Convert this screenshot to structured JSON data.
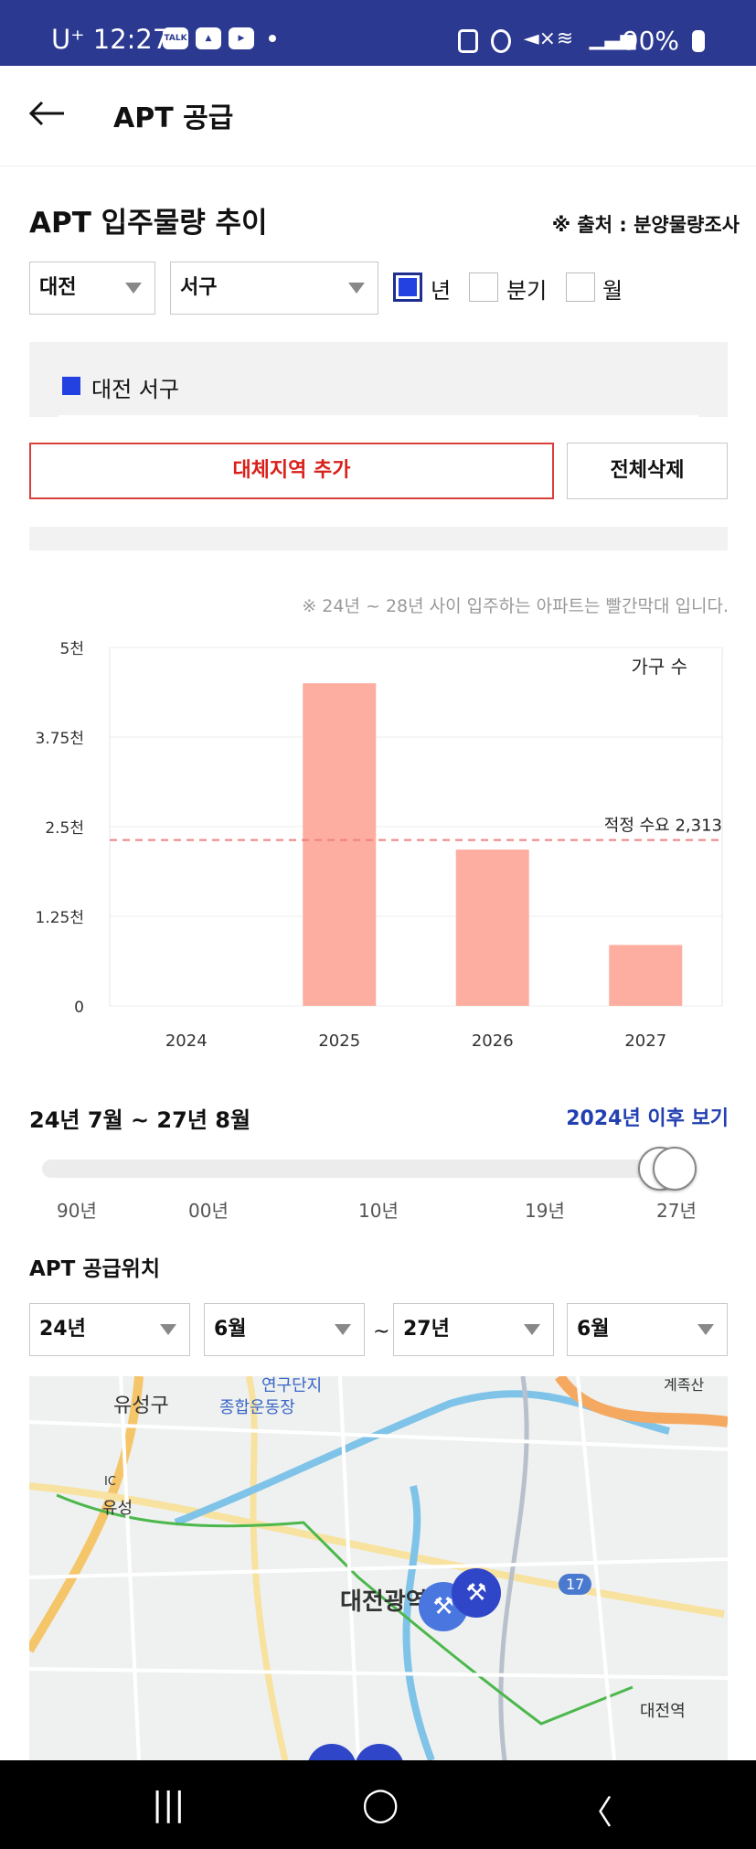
{
  "status": {
    "time": "U⁺ 12:27",
    "battery": "90%",
    "icons": [
      "talk-icon",
      "image-icon",
      "youtube-icon",
      "sim-icon",
      "alarm-icon",
      "mute-icon",
      "wifi-icon",
      "signal-icon",
      "battery-icon"
    ]
  },
  "header": {
    "title": "APT 공급"
  },
  "supply_section": {
    "title": "APT 입주물량 추이",
    "source": "※ 출처 : 분양물량조사",
    "region_select": "대전",
    "district_select": "서구",
    "period_options": [
      {
        "label": "년",
        "checked": true
      },
      {
        "label": "분기",
        "checked": false
      },
      {
        "label": "월",
        "checked": false
      }
    ],
    "legend_label": "대전 서구",
    "add_button": "대체지역 추가",
    "delete_button": "전체삭제",
    "note": "※ 24년 ~ 28년 사이 입주하는 아파트는 빨간막대 입니다."
  },
  "chart_data": {
    "type": "bar",
    "categories": [
      "2024",
      "2025",
      "2026",
      "2027"
    ],
    "values": [
      0,
      4500,
      2180,
      850
    ],
    "y_tick_labels": [
      "0",
      "1.25천",
      "2.5천",
      "3.75천",
      "5천"
    ],
    "y_ticks": [
      0,
      1250,
      2500,
      3750,
      5000
    ],
    "ylim": [
      0,
      5000
    ],
    "unit_label": "가구 수",
    "reference_value": 2313,
    "reference_label": "적정 수요 2,313",
    "bar_color": "#fdaea0",
    "reference_color": "#f08080",
    "grid": true
  },
  "range": {
    "label": "24년 7월 ~ 27년 8월",
    "link": "2024년 이후 보기",
    "ticks": [
      "90년",
      "00년",
      "10년",
      "19년",
      "27년"
    ]
  },
  "location_section": {
    "title": "APT 공급위치",
    "from_year": "24년",
    "from_month": "6월",
    "tilde": "~",
    "to_year": "27년",
    "to_month": "6월"
  },
  "map": {
    "labels": [
      "유성구",
      "연구단지",
      "종합운동장",
      "유성",
      "대전광역시청",
      "대전역",
      "17",
      "계족산",
      "IC"
    ]
  },
  "navbar": {
    "recent": "|||",
    "home": "◯",
    "back": "〈"
  }
}
